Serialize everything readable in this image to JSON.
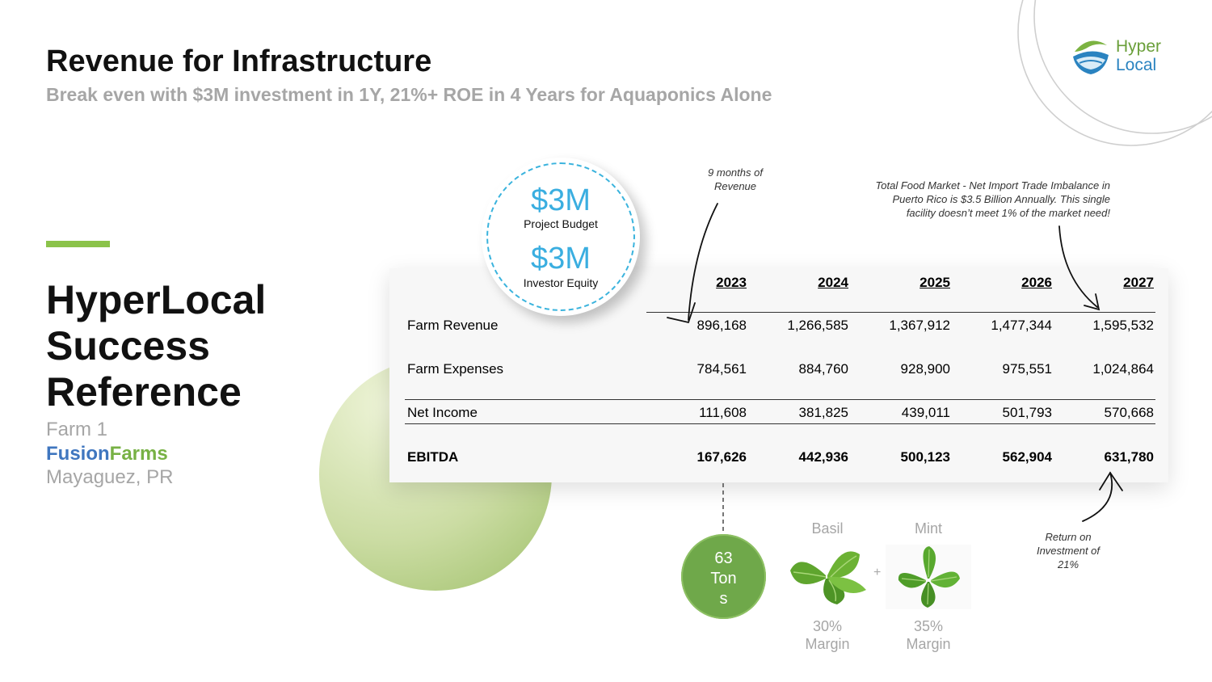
{
  "header": {
    "title": "Revenue for Infrastructure",
    "subtitle": "Break even with $3M investment in 1Y, 21%+ ROE in 4 Years for Aquaponics Alone"
  },
  "logo": {
    "line1": "Hyper",
    "line2": "Local"
  },
  "section": {
    "title_lines": [
      "HyperLocal",
      "Success",
      "Reference"
    ],
    "farm_label": "Farm 1",
    "farm_name_part1": "Fusion",
    "farm_name_part2": "Farms",
    "location": "Mayaguez, PR"
  },
  "budget": {
    "amount1": "$3M",
    "caption1": "Project Budget",
    "amount2": "$3M",
    "caption2": "Investor Equity"
  },
  "annotations": {
    "months": [
      "9 months of",
      "Revenue"
    ],
    "market": [
      "Total Food Market - Net Import Trade Imbalance in",
      "Puerto Rico is $3.5 Billion Annually. This single",
      "facility doesn’t meet 1% of the market need!"
    ],
    "roi": [
      "Return on",
      "Investment of",
      "21%"
    ]
  },
  "table": {
    "years": [
      "2023",
      "2024",
      "2025",
      "2026",
      "2027"
    ],
    "rows": [
      {
        "label": "Farm Revenue",
        "values": [
          "896,168",
          "1,266,585",
          "1,367,912",
          "1,477,344",
          "1,595,532"
        ]
      },
      {
        "label": "Farm Expenses",
        "values": [
          "784,561",
          "884,760",
          "928,900",
          "975,551",
          "1,024,864"
        ]
      },
      {
        "label": "Net Income",
        "values": [
          "111,608",
          "381,825",
          "439,011",
          "501,793",
          "570,668"
        ]
      },
      {
        "label": "EBITDA",
        "values": [
          "167,626",
          "442,936",
          "500,123",
          "562,904",
          "631,780"
        ]
      }
    ]
  },
  "production": {
    "tons_lines": [
      "63",
      "Ton",
      "s"
    ]
  },
  "herbs": [
    {
      "name": "Basil",
      "margin_pct": "30%",
      "margin_word": "Margin"
    },
    {
      "name": "Mint",
      "margin_pct": "35%",
      "margin_word": "Margin"
    }
  ],
  "plus_sign": "+",
  "colors": {
    "accent_green": "#8bc34a",
    "money_blue": "#3aaee0",
    "fusion_blue": "#3f76bf",
    "farms_green": "#77b144"
  }
}
